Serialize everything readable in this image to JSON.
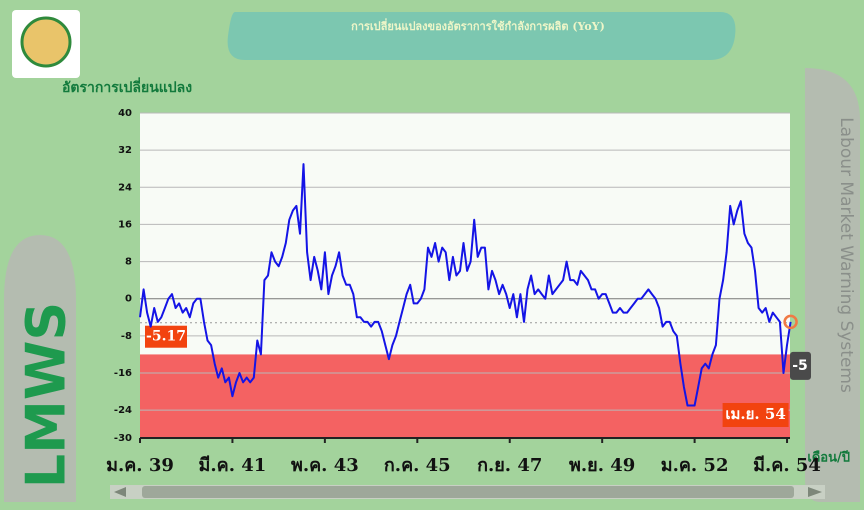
{
  "chart_data": {
    "type": "line",
    "title": "การเปลี่ยนแปลงของอัตราการใช้กำลังการผลิต (YoY)",
    "y_label": "อัตราการเปลี่ยนแปลง",
    "x_label": "เดือน/ปี",
    "side_title": "Labour Market Warning Systems",
    "brand": "LMWS",
    "categories": [
      "ม.ค. 39",
      null,
      null,
      null,
      null,
      null,
      null,
      null,
      null,
      null,
      null,
      null,
      null,
      null,
      null,
      null,
      null,
      null,
      null,
      null,
      null,
      null,
      null,
      null,
      null,
      null,
      "มี.ค. 41",
      null,
      null,
      null,
      null,
      null,
      null,
      null,
      null,
      null,
      null,
      null,
      null,
      null,
      null,
      null,
      null,
      null,
      null,
      null,
      null,
      null,
      null,
      null,
      null,
      null,
      "พ.ค. 43",
      null,
      null,
      null,
      null,
      null,
      null,
      null,
      null,
      null,
      null,
      null,
      null,
      null,
      null,
      null,
      null,
      null,
      null,
      null,
      null,
      null,
      null,
      null,
      null,
      null,
      "ก.ค. 45",
      null,
      null,
      null,
      null,
      null,
      null,
      null,
      null,
      null,
      null,
      null,
      null,
      null,
      null,
      null,
      null,
      null,
      null,
      null,
      null,
      null,
      null,
      null,
      null,
      null,
      "ก.ย. 47",
      null,
      null,
      null,
      null,
      null,
      null,
      null,
      null,
      null,
      null,
      null,
      null,
      null,
      null,
      null,
      null,
      null,
      null,
      null,
      null,
      null,
      null,
      null,
      null,
      null,
      "พ.ย. 49",
      null,
      null,
      null,
      null,
      null,
      null,
      null,
      null,
      null,
      null,
      null,
      null,
      null,
      null,
      null,
      null,
      null,
      null,
      null,
      null,
      null,
      null,
      null,
      null,
      null,
      "ม.ค. 52",
      null,
      null,
      null,
      null,
      null,
      null,
      null,
      null,
      null,
      null,
      null,
      null,
      null,
      null,
      null,
      null,
      null,
      null,
      null,
      null,
      null,
      null,
      null,
      null,
      null,
      "มี.ค. 54",
      "เม.ย. 54"
    ],
    "series": [
      {
        "color": "#1414e6",
        "values": [
          -4,
          2,
          -3,
          -6,
          -2,
          -5,
          -4,
          -2,
          0,
          1,
          -2,
          -1,
          -3,
          -2,
          -4,
          -1,
          0,
          0,
          -5,
          -9,
          -10,
          -14,
          -17,
          -15,
          -18,
          -17,
          -21,
          -18,
          -16,
          -18,
          -17,
          -18,
          -17,
          -9,
          -12,
          4,
          5,
          10,
          8,
          7,
          9,
          12,
          17,
          19,
          20,
          14,
          29,
          10,
          4,
          9,
          6,
          2,
          10,
          1,
          5,
          7,
          10,
          5,
          3,
          3,
          1,
          -4,
          -4,
          -5,
          -5,
          -6,
          -5,
          -5,
          -7,
          -10,
          -13,
          -10,
          -8,
          -5,
          -2,
          1,
          3,
          -1,
          -1,
          0,
          2,
          11,
          9,
          12,
          8,
          11,
          10,
          4,
          9,
          5,
          6,
          12,
          6,
          8,
          17,
          9,
          11,
          11,
          2,
          6,
          4,
          1,
          3,
          1,
          -2,
          1,
          -4,
          1,
          -5,
          2,
          5,
          1,
          2,
          1,
          0,
          5,
          1,
          2,
          3,
          4,
          8,
          4,
          4,
          3,
          6,
          5,
          4,
          2,
          2,
          0,
          1,
          1,
          -1,
          -3,
          -3,
          -2,
          -3,
          -3,
          -2,
          -1,
          0,
          0,
          1,
          2,
          1,
          0,
          -2,
          -6,
          -5,
          -5,
          -7,
          -8,
          -14,
          -19,
          -23,
          -23,
          -23,
          -19,
          -15,
          -14,
          -15,
          -12,
          -10,
          0,
          4,
          10,
          20,
          16,
          19,
          21,
          14,
          12,
          11,
          6,
          -2,
          -3,
          -2,
          -5,
          -3,
          -4,
          -5,
          -16,
          -10,
          -5
        ]
      }
    ],
    "reference_value": -5.17,
    "warning_band": {
      "range": [
        -30,
        -12
      ],
      "color": "#f46262"
    },
    "ylim": [
      -30,
      40
    ],
    "yticks": [
      40,
      32,
      24,
      16,
      8,
      0,
      -8,
      -16,
      -24,
      -30
    ],
    "grid": true
  }
}
